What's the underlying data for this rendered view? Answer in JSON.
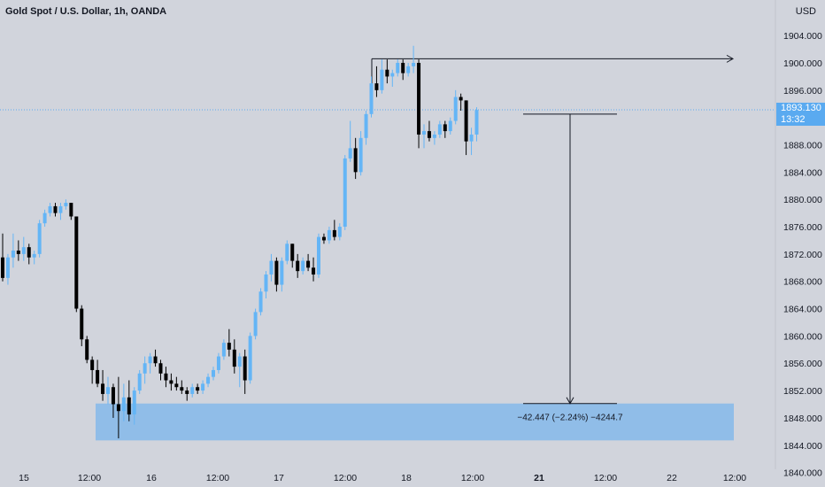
{
  "header": {
    "symbol": "Gold Spot / U.S. Dollar, 1h, OANDA",
    "currency": "USD"
  },
  "price_label": {
    "value": "1893.130",
    "countdown": "13:32"
  },
  "measurement": {
    "text": "−42.447 (−2.24%) −4244.7"
  },
  "colors": {
    "background": "#d1d4dc",
    "up_candle": "#64b5f6",
    "down_candle": "#000000",
    "zone_fill": "#90bde8",
    "text": "#131722",
    "current_price_line": "#5aaaf0"
  },
  "chart_data": {
    "type": "candlestick",
    "title": "Gold Spot / U.S. Dollar, 1h, OANDA",
    "y_ticks": [
      "1904.000",
      "1900.000",
      "1896.000",
      "1892.000",
      "1888.000",
      "1884.000",
      "1880.000",
      "1876.000",
      "1872.000",
      "1868.000",
      "1864.000",
      "1860.000",
      "1856.000",
      "1852.000",
      "1848.000",
      "1844.000",
      "1840.000"
    ],
    "x_ticks": [
      {
        "label": "15",
        "bold": false
      },
      {
        "label": "12:00",
        "bold": false
      },
      {
        "label": "16",
        "bold": false
      },
      {
        "label": "12:00",
        "bold": false
      },
      {
        "label": "17",
        "bold": false
      },
      {
        "label": "12:00",
        "bold": false
      },
      {
        "label": "18",
        "bold": false
      },
      {
        "label": "12:00",
        "bold": false
      },
      {
        "label": "21",
        "bold": true
      },
      {
        "label": "12:00",
        "bold": false
      },
      {
        "label": "22",
        "bold": false
      },
      {
        "label": "12:00",
        "bold": false
      }
    ],
    "ylim": [
      1840,
      1908
    ],
    "current_price": 1893.13,
    "resistance_level": 1900.6,
    "support_zone": [
      1844.7,
      1850.1
    ],
    "measure": {
      "from": 1892.5,
      "to": 1850.1
    },
    "candles": [
      [
        1871.5,
        1875.0,
        1868.0,
        1868.5
      ],
      [
        1868.5,
        1872.0,
        1867.5,
        1871.5
      ],
      [
        1871.5,
        1875.0,
        1870.0,
        1872.5
      ],
      [
        1872.5,
        1874.0,
        1871.0,
        1872.0
      ],
      [
        1872.0,
        1874.5,
        1871.0,
        1873.0
      ],
      [
        1873.0,
        1873.5,
        1870.5,
        1871.5
      ],
      [
        1871.5,
        1872.5,
        1870.5,
        1872.0
      ],
      [
        1872.0,
        1877.0,
        1871.5,
        1876.5
      ],
      [
        1876.5,
        1878.5,
        1876.0,
        1878.0
      ],
      [
        1878.0,
        1879.5,
        1877.5,
        1879.0
      ],
      [
        1879.0,
        1879.5,
        1877.5,
        1878.0
      ],
      [
        1878.0,
        1879.5,
        1877.0,
        1879.0
      ],
      [
        1879.0,
        1880.0,
        1878.5,
        1879.5
      ],
      [
        1879.5,
        1879.5,
        1877.0,
        1877.5
      ],
      [
        1877.5,
        1877.5,
        1863.5,
        1864.0
      ],
      [
        1864.0,
        1864.5,
        1858.5,
        1859.5
      ],
      [
        1859.5,
        1860.0,
        1856.0,
        1856.5
      ],
      [
        1856.5,
        1857.0,
        1853.0,
        1855.0
      ],
      [
        1855.0,
        1856.5,
        1852.5,
        1853.0
      ],
      [
        1853.0,
        1855.0,
        1850.5,
        1851.5
      ],
      [
        1851.5,
        1854.0,
        1850.0,
        1852.5
      ],
      [
        1852.5,
        1853.0,
        1848.0,
        1850.0
      ],
      [
        1850.0,
        1854.0,
        1845.0,
        1849.0
      ],
      [
        1849.0,
        1853.0,
        1847.5,
        1851.0
      ],
      [
        1851.0,
        1853.5,
        1847.5,
        1848.5
      ],
      [
        1848.5,
        1852.5,
        1847.0,
        1852.0
      ],
      [
        1852.0,
        1855.0,
        1851.5,
        1854.5
      ],
      [
        1854.5,
        1857.0,
        1853.0,
        1856.0
      ],
      [
        1856.0,
        1857.5,
        1854.5,
        1857.0
      ],
      [
        1857.0,
        1858.0,
        1855.5,
        1856.0
      ],
      [
        1856.0,
        1856.5,
        1853.5,
        1854.5
      ],
      [
        1854.5,
        1855.5,
        1852.5,
        1853.5
      ],
      [
        1853.5,
        1854.5,
        1852.0,
        1853.0
      ],
      [
        1853.0,
        1854.0,
        1852.0,
        1852.5
      ],
      [
        1852.5,
        1853.5,
        1851.5,
        1852.0
      ],
      [
        1852.0,
        1852.5,
        1850.5,
        1851.5
      ],
      [
        1851.5,
        1853.0,
        1851.0,
        1852.5
      ],
      [
        1852.5,
        1853.0,
        1851.5,
        1852.0
      ],
      [
        1852.0,
        1853.5,
        1851.5,
        1853.0
      ],
      [
        1853.0,
        1854.5,
        1852.5,
        1854.0
      ],
      [
        1854.0,
        1855.5,
        1853.5,
        1855.0
      ],
      [
        1855.0,
        1857.5,
        1854.5,
        1857.0
      ],
      [
        1857.0,
        1859.5,
        1856.5,
        1859.0
      ],
      [
        1859.0,
        1861.0,
        1857.0,
        1858.0
      ],
      [
        1858.0,
        1859.5,
        1854.5,
        1855.5
      ],
      [
        1855.5,
        1857.5,
        1852.5,
        1857.0
      ],
      [
        1857.0,
        1858.0,
        1851.5,
        1853.5
      ],
      [
        1853.5,
        1860.5,
        1853.0,
        1860.0
      ],
      [
        1860.0,
        1864.0,
        1859.5,
        1863.5
      ],
      [
        1863.5,
        1867.0,
        1863.0,
        1866.5
      ],
      [
        1866.5,
        1869.5,
        1865.5,
        1869.0
      ],
      [
        1869.0,
        1872.0,
        1868.0,
        1871.0
      ],
      [
        1871.0,
        1871.5,
        1866.5,
        1867.5
      ],
      [
        1867.5,
        1871.5,
        1866.5,
        1871.0
      ],
      [
        1871.0,
        1874.0,
        1870.5,
        1873.5
      ],
      [
        1873.5,
        1873.5,
        1870.0,
        1871.0
      ],
      [
        1871.0,
        1872.0,
        1868.5,
        1869.5
      ],
      [
        1869.5,
        1871.5,
        1869.0,
        1871.0
      ],
      [
        1871.0,
        1872.0,
        1869.5,
        1870.0
      ],
      [
        1870.0,
        1871.5,
        1868.0,
        1869.0
      ],
      [
        1869.0,
        1875.0,
        1868.5,
        1874.5
      ],
      [
        1874.5,
        1875.0,
        1873.5,
        1874.0
      ],
      [
        1874.0,
        1876.0,
        1873.5,
        1875.5
      ],
      [
        1875.5,
        1877.0,
        1874.0,
        1874.5
      ],
      [
        1874.5,
        1876.5,
        1874.0,
        1876.0
      ],
      [
        1876.0,
        1886.5,
        1875.5,
        1886.0
      ],
      [
        1886.0,
        1891.5,
        1885.5,
        1887.5
      ],
      [
        1887.5,
        1889.0,
        1883.0,
        1884.0
      ],
      [
        1884.0,
        1890.0,
        1883.5,
        1889.0
      ],
      [
        1889.0,
        1893.0,
        1888.0,
        1892.5
      ],
      [
        1892.5,
        1898.0,
        1892.0,
        1897.0
      ],
      [
        1897.0,
        1899.5,
        1895.0,
        1896.0
      ],
      [
        1896.0,
        1900.5,
        1895.5,
        1899.0
      ],
      [
        1899.0,
        1900.5,
        1897.0,
        1898.0
      ],
      [
        1898.0,
        1899.0,
        1896.5,
        1898.5
      ],
      [
        1898.5,
        1900.5,
        1898.0,
        1900.0
      ],
      [
        1900.0,
        1900.5,
        1897.5,
        1898.5
      ],
      [
        1898.5,
        1900.0,
        1898.0,
        1899.5
      ],
      [
        1899.5,
        1902.5,
        1898.5,
        1900.0
      ],
      [
        1900.0,
        1900.5,
        1887.5,
        1889.5
      ],
      [
        1889.5,
        1891.0,
        1887.5,
        1890.0
      ],
      [
        1890.0,
        1891.5,
        1888.5,
        1889.0
      ],
      [
        1889.0,
        1890.0,
        1888.0,
        1889.5
      ],
      [
        1889.5,
        1891.5,
        1889.0,
        1891.0
      ],
      [
        1891.0,
        1891.5,
        1889.0,
        1890.0
      ],
      [
        1890.0,
        1892.0,
        1889.5,
        1891.5
      ],
      [
        1891.5,
        1896.0,
        1891.0,
        1895.0
      ],
      [
        1895.0,
        1895.5,
        1893.0,
        1894.5
      ],
      [
        1894.5,
        1894.5,
        1886.5,
        1888.5
      ],
      [
        1888.5,
        1890.5,
        1886.5,
        1889.5
      ],
      [
        1889.5,
        1893.5,
        1888.5,
        1893.1
      ]
    ]
  }
}
